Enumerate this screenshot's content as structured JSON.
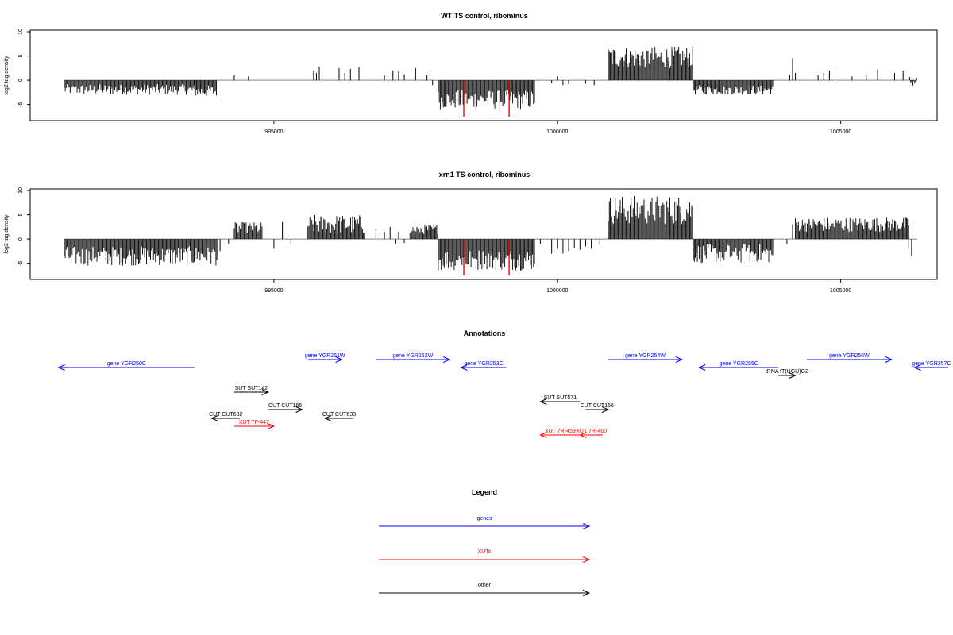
{
  "chart_data": [
    {
      "type": "bar",
      "title": "WT TS control, ribominus",
      "xlabel": "",
      "ylabel": "log2 tag density",
      "xlim": [
        990700,
        1006700
      ],
      "ylim": [
        -8,
        10
      ],
      "xticks": [
        995000,
        1000000,
        1005000
      ],
      "xtick_labels": [
        "995000",
        "1000000",
        "1005000"
      ],
      "yticks": [
        -5,
        0,
        5,
        10
      ],
      "ytick_labels": [
        "-5",
        "0",
        "5",
        "10"
      ],
      "grid": false,
      "colors": {
        "signal": "#000000",
        "highlight": "#ff0000"
      },
      "highlights": [
        {
          "x": 998350,
          "y": -7.5
        },
        {
          "x": 999150,
          "y": -7.5
        }
      ],
      "segments": [
        {
          "x0": 991300,
          "x1": 993600,
          "y_min": -3.0,
          "y_max": -0.8
        },
        {
          "x0": 993600,
          "x1": 994000,
          "y_min": -3.5,
          "y_max": -1.0
        },
        {
          "x0": 997900,
          "x1": 999600,
          "y_min": -6.0,
          "y_max": -2.0
        },
        {
          "x0": 1000900,
          "x1": 1002400,
          "y_min": 2.5,
          "y_max": 7.0
        },
        {
          "x0": 1002400,
          "x1": 1003800,
          "y_min": -3.0,
          "y_max": -1.0
        },
        {
          "x0": 1006200,
          "x1": 1006350,
          "y_min": -1.5,
          "y_max": 1.0
        }
      ],
      "spikes": [
        {
          "x": 994300,
          "y": 1.0
        },
        {
          "x": 994550,
          "y": 0.8
        },
        {
          "x": 995700,
          "y": 2.0
        },
        {
          "x": 995750,
          "y": 1.5
        },
        {
          "x": 995800,
          "y": 2.8
        },
        {
          "x": 995850,
          "y": 1.2
        },
        {
          "x": 996150,
          "y": 2.5
        },
        {
          "x": 996250,
          "y": 1.5
        },
        {
          "x": 996350,
          "y": 2.3
        },
        {
          "x": 996500,
          "y": 2.7
        },
        {
          "x": 996950,
          "y": 1.0
        },
        {
          "x": 997100,
          "y": 2.0
        },
        {
          "x": 997200,
          "y": 1.8
        },
        {
          "x": 997300,
          "y": 1.2
        },
        {
          "x": 997500,
          "y": 2.5
        },
        {
          "x": 997700,
          "y": 1.0
        },
        {
          "x": 997800,
          "y": -1.0
        },
        {
          "x": 999900,
          "y": -0.5
        },
        {
          "x": 1000000,
          "y": 0.8
        },
        {
          "x": 1000100,
          "y": -1.0
        },
        {
          "x": 1000200,
          "y": -0.8
        },
        {
          "x": 1000500,
          "y": -0.6
        },
        {
          "x": 1000650,
          "y": -1.0
        },
        {
          "x": 1004100,
          "y": 1.0
        },
        {
          "x": 1004150,
          "y": 4.5
        },
        {
          "x": 1004200,
          "y": 1.5
        },
        {
          "x": 1004600,
          "y": 1.0
        },
        {
          "x": 1004700,
          "y": 1.5
        },
        {
          "x": 1004800,
          "y": 2.0
        },
        {
          "x": 1004900,
          "y": 3.0
        },
        {
          "x": 1005200,
          "y": 0.8
        },
        {
          "x": 1005450,
          "y": 1.0
        },
        {
          "x": 1005650,
          "y": 2.2
        },
        {
          "x": 1005950,
          "y": 1.5
        },
        {
          "x": 1006100,
          "y": 2.0
        }
      ]
    },
    {
      "type": "bar",
      "title": "xrn1 TS control, ribominus",
      "xlabel": "",
      "ylabel": "log2 tag density",
      "xlim": [
        990700,
        1006700
      ],
      "ylim": [
        -8,
        10
      ],
      "xticks": [
        995000,
        1000000,
        1005000
      ],
      "xtick_labels": [
        "995000",
        "1000000",
        "1005000"
      ],
      "yticks": [
        -5,
        0,
        5,
        10
      ],
      "ytick_labels": [
        "-5",
        "0",
        "5",
        "10"
      ],
      "grid": false,
      "colors": {
        "signal": "#000000",
        "highlight": "#ff0000"
      },
      "highlights": [
        {
          "x": 998350,
          "y": -7.5
        },
        {
          "x": 999150,
          "y": -7.5
        }
      ],
      "segments": [
        {
          "x0": 991300,
          "x1": 994000,
          "y_min": -5.5,
          "y_max": -1.5
        },
        {
          "x0": 994300,
          "x1": 994800,
          "y_min": 1.0,
          "y_max": 3.5
        },
        {
          "x0": 995600,
          "x1": 996600,
          "y_min": 1.0,
          "y_max": 5.0
        },
        {
          "x0": 997400,
          "x1": 997900,
          "y_min": 1.0,
          "y_max": 3.0
        },
        {
          "x0": 997900,
          "x1": 999600,
          "y_min": -6.5,
          "y_max": -2.0
        },
        {
          "x0": 1000900,
          "x1": 1002400,
          "y_min": 3.0,
          "y_max": 9.0
        },
        {
          "x0": 1002400,
          "x1": 1003800,
          "y_min": -5.0,
          "y_max": -1.0
        },
        {
          "x0": 1004200,
          "x1": 1006200,
          "y_min": 1.5,
          "y_max": 4.5
        }
      ],
      "spikes": [
        {
          "x": 994050,
          "y": -2.5
        },
        {
          "x": 994200,
          "y": -1.0
        },
        {
          "x": 995000,
          "y": -2.0
        },
        {
          "x": 995150,
          "y": 3.5
        },
        {
          "x": 995300,
          "y": -1.0
        },
        {
          "x": 996800,
          "y": 2.0
        },
        {
          "x": 996950,
          "y": 1.5
        },
        {
          "x": 997050,
          "y": 2.5
        },
        {
          "x": 997150,
          "y": -1.0
        },
        {
          "x": 997200,
          "y": 1.5
        },
        {
          "x": 997300,
          "y": -0.8
        },
        {
          "x": 999700,
          "y": -1.0
        },
        {
          "x": 999800,
          "y": -2.5
        },
        {
          "x": 999900,
          "y": -3.0
        },
        {
          "x": 1000000,
          "y": -2.0
        },
        {
          "x": 1000100,
          "y": -3.0
        },
        {
          "x": 1000200,
          "y": -2.5
        },
        {
          "x": 1000300,
          "y": -1.8
        },
        {
          "x": 1000400,
          "y": -2.2
        },
        {
          "x": 1000500,
          "y": -1.5
        },
        {
          "x": 1000600,
          "y": -2.0
        },
        {
          "x": 1000750,
          "y": -1.2
        },
        {
          "x": 1004050,
          "y": -1.0
        },
        {
          "x": 1004150,
          "y": 3.0
        },
        {
          "x": 1006200,
          "y": -2.0
        },
        {
          "x": 1006250,
          "y": -3.5
        }
      ]
    }
  ],
  "annotations": {
    "title": "Annotations",
    "features": [
      {
        "label": "gene YGR250C",
        "x0": 991200,
        "x1": 993600,
        "strand": "-",
        "type": "gene",
        "row": 1
      },
      {
        "label": "gene YGR251W",
        "x0": 995600,
        "x1": 996200,
        "strand": "+",
        "type": "gene",
        "row": 0
      },
      {
        "label": "gene YGR252W",
        "x0": 996800,
        "x1": 998100,
        "strand": "+",
        "type": "gene",
        "row": 0
      },
      {
        "label": "gene YGR253C",
        "x0": 998300,
        "x1": 999100,
        "strand": "-",
        "type": "gene",
        "row": 1
      },
      {
        "label": "gene YGR254W",
        "x0": 1000900,
        "x1": 1002200,
        "strand": "+",
        "type": "gene",
        "row": 0
      },
      {
        "label": "gene YGR255C",
        "x0": 1002500,
        "x1": 1003900,
        "strand": "-",
        "type": "gene",
        "row": 1
      },
      {
        "label": "tRNA tT(UGU)G2",
        "x0": 1003900,
        "x1": 1004200,
        "strand": "+",
        "type": "other",
        "row": 2
      },
      {
        "label": "gene YGR256W",
        "x0": 1004400,
        "x1": 1005900,
        "strand": "+",
        "type": "gene",
        "row": 0
      },
      {
        "label": "gene YGR257C",
        "x0": 1006300,
        "x1": 1006900,
        "strand": "-",
        "type": "gene",
        "row": 1
      },
      {
        "label": "SUT SUT142",
        "x0": 994300,
        "x1": 994900,
        "strand": "+",
        "type": "other",
        "row": 3
      },
      {
        "label": "SUT SUT571",
        "x0": 999700,
        "x1": 1000400,
        "strand": "-",
        "type": "other",
        "row": 4
      },
      {
        "label": "CUT CUT165",
        "x0": 994900,
        "x1": 995500,
        "strand": "+",
        "type": "other",
        "row": 5
      },
      {
        "label": "CUT CUT166",
        "x0": 1000500,
        "x1": 1000900,
        "strand": "+",
        "type": "other",
        "row": 5
      },
      {
        "label": "CUT CUT632",
        "x0": 993900,
        "x1": 994400,
        "strand": "-",
        "type": "other",
        "row": 6
      },
      {
        "label": "CUT CUT633",
        "x0": 995900,
        "x1": 996400,
        "strand": "-",
        "type": "other",
        "row": 6
      },
      {
        "label": "XUT 7F-447",
        "x0": 994300,
        "x1": 995000,
        "strand": "+",
        "type": "xut",
        "row": 7
      },
      {
        "label": "XUT 7R-459",
        "x0": 999700,
        "x1": 1000400,
        "strand": "-",
        "type": "xut",
        "row": 8
      },
      {
        "label": "XUT 7R-460",
        "x0": 1000400,
        "x1": 1000800,
        "strand": "-",
        "type": "xut",
        "row": 8
      }
    ]
  },
  "legend": {
    "title": "Legend",
    "entries": [
      {
        "label": "genes",
        "color": "#0000ff"
      },
      {
        "label": "XUTs",
        "color": "#ff0000"
      },
      {
        "label": "other",
        "color": "#000000"
      }
    ]
  },
  "colors": {
    "gene": "#0000ff",
    "xut": "#ff0000",
    "other": "#000000",
    "axis": "#000000",
    "baseline": "#888888"
  }
}
